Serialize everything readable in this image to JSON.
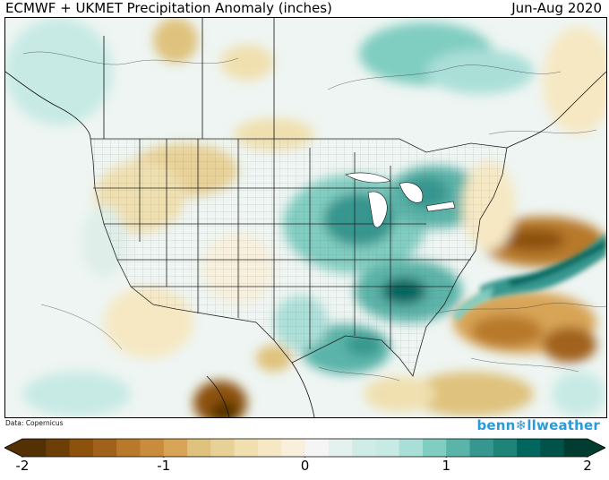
{
  "header": {
    "title": "ECMWF + UKMET Precipitation Anomaly (inches)",
    "period": "Jun-Aug 2020"
  },
  "footer": {
    "credit": "Data: Copernicus",
    "brand_prefix": "benn",
    "brand_glyph": "❄",
    "brand_suffix": "llweather"
  },
  "colorbar": {
    "min": -2,
    "max": 2,
    "ticks": [
      {
        "value": -2,
        "label": "-2"
      },
      {
        "value": -1,
        "label": "-1"
      },
      {
        "value": 0,
        "label": "0"
      },
      {
        "value": 1,
        "label": "1"
      },
      {
        "value": 2,
        "label": "2"
      }
    ],
    "colors": [
      "#543005",
      "#6d3f08",
      "#8c510a",
      "#a0621a",
      "#b8792b",
      "#c98c3c",
      "#d8a456",
      "#dfc27d",
      "#e8d196",
      "#f0e0b0",
      "#f6e8c3",
      "#f8f0dc",
      "#f5f5f5",
      "#e4f2ef",
      "#d0ece6",
      "#c7eae5",
      "#aadfd8",
      "#80cdc1",
      "#5ab4a9",
      "#35978f",
      "#1f8478",
      "#01665e",
      "#015248",
      "#003c30"
    ]
  },
  "map": {
    "region": "Contiguous United States",
    "anomalies": [
      {
        "name": "Midwest wet",
        "level": 1.2
      },
      {
        "name": "Southeast wet",
        "level": 1.5
      },
      {
        "name": "Gulf coast wet",
        "level": 1.2
      },
      {
        "name": "Atlantic wet band",
        "level": 1.8
      },
      {
        "name": "Atlantic dry",
        "level": -1.5
      },
      {
        "name": "Mexico dry",
        "level": -1.8
      },
      {
        "name": "Northern Plains dry",
        "level": -0.5
      },
      {
        "name": "Canada wet",
        "level": 0.8
      }
    ]
  }
}
